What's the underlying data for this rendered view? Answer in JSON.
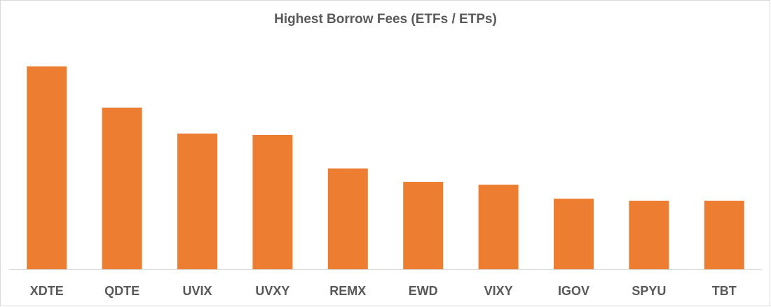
{
  "chart_data": {
    "type": "bar",
    "title": "Highest Borrow Fees (ETFs / ETPs)",
    "categories": [
      "XDTE",
      "QDTE",
      "UVIX",
      "UVXY",
      "REMX",
      "EWD",
      "VIXY",
      "IGOV",
      "SPYU",
      "TBT"
    ],
    "values": [
      100,
      79.7,
      66.9,
      66.2,
      49.7,
      43.1,
      41.7,
      34.8,
      33.8,
      33.8
    ],
    "color": "#ed7d31"
  }
}
